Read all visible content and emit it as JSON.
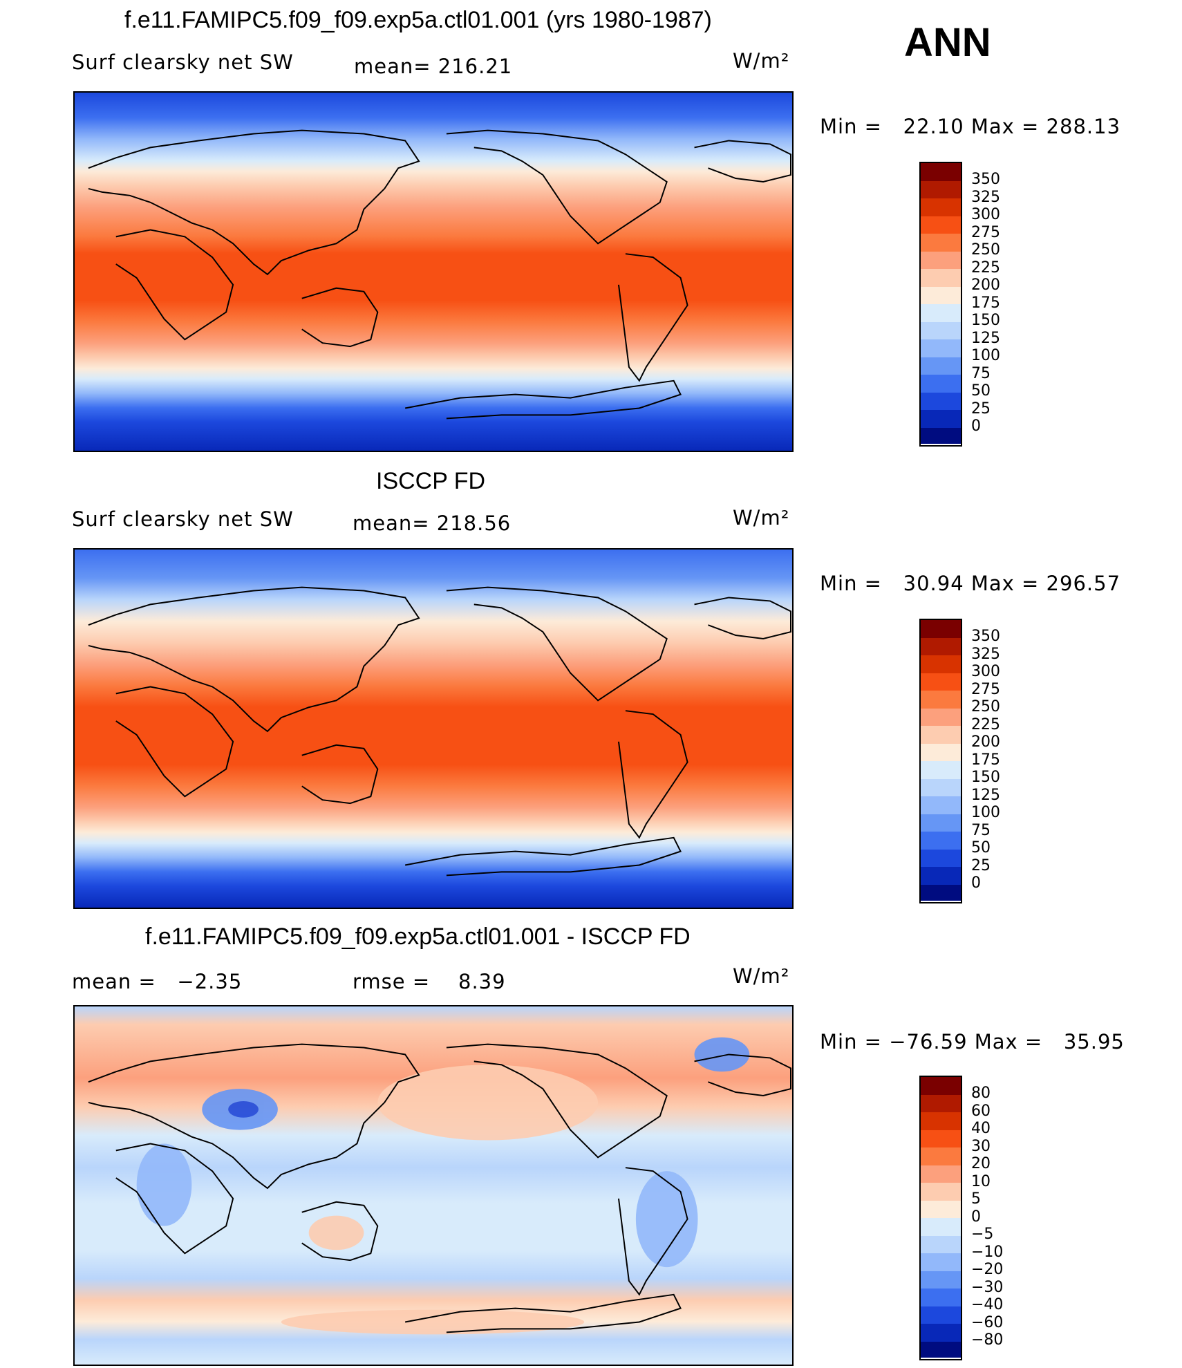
{
  "season": "ANN",
  "panels": [
    {
      "title": "f.e11.FAMIPC5.f09_f09.exp5a.ctl01.001 (yrs 1980-1987)",
      "left_label": "Surf clearsky net SW",
      "center_label": "mean= 216.21",
      "units": "W/m²",
      "min_max": "Min =   22.10 Max = 288.13",
      "colorbar_levels": [
        "350",
        "325",
        "300",
        "275",
        "250",
        "225",
        "200",
        "175",
        "150",
        "125",
        "100",
        "75",
        "50",
        "25",
        "0"
      ]
    },
    {
      "title": "ISCCP FD",
      "left_label": "Surf clearsky net SW",
      "center_label": "mean= 218.56",
      "units": "W/m²",
      "min_max": "Min =   30.94 Max = 296.57",
      "colorbar_levels": [
        "350",
        "325",
        "300",
        "275",
        "250",
        "225",
        "200",
        "175",
        "150",
        "125",
        "100",
        "75",
        "50",
        "25",
        "0"
      ]
    },
    {
      "title": "f.e11.FAMIPC5.f09_f09.exp5a.ctl01.001 - ISCCP FD",
      "left_label": "mean =   −2.35",
      "center_label": "rmse =    8.39",
      "units": "W/m²",
      "min_max": "Min = −76.59 Max =   35.95",
      "colorbar_levels": [
        "80",
        "60",
        "40",
        "30",
        "20",
        "10",
        "5",
        "0",
        "−5",
        "−10",
        "−20",
        "−30",
        "−40",
        "−60",
        "−80"
      ]
    }
  ],
  "colors": {
    "cbar": [
      "#7a0000",
      "#b01a00",
      "#d83300",
      "#f75014",
      "#fb7a3f",
      "#fca07d",
      "#fdccb0",
      "#fdebd9",
      "#d8ebfb",
      "#b9d5fb",
      "#92b8fa",
      "#6696f5",
      "#3c6ff0",
      "#1c48dd",
      "#0828b8",
      "#000c80"
    ]
  }
}
